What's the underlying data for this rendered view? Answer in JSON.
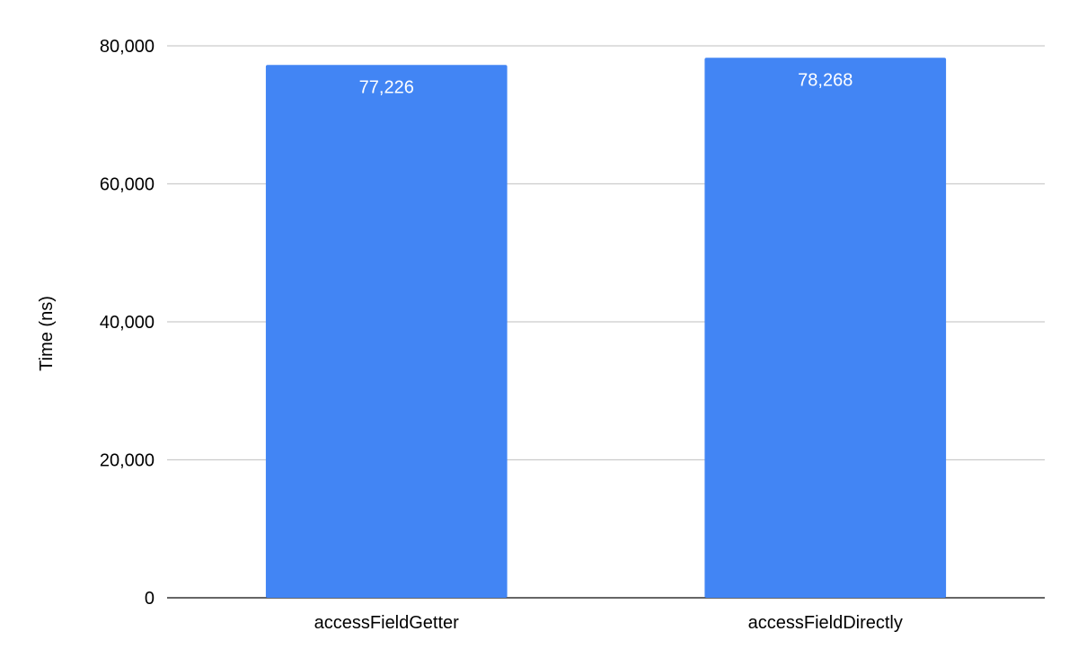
{
  "chart_data": {
    "type": "bar",
    "title": "",
    "xlabel": "",
    "ylabel": "Time (ns)",
    "categories": [
      "accessFieldGetter",
      "accessFieldDirectly"
    ],
    "values": [
      77226,
      78268
    ],
    "data_labels": [
      "77,226",
      "78,268"
    ],
    "ylim": [
      0,
      80000
    ],
    "yticks": [
      0,
      20000,
      40000,
      60000,
      80000
    ],
    "ytick_labels": [
      "0",
      "20,000",
      "40,000",
      "60,000",
      "80,000"
    ],
    "grid": true,
    "legend": "none",
    "colors": {
      "bar": "#4285f4",
      "grid": "#cccccc",
      "axis": "#333333",
      "text": "#000000",
      "data_label": "#ffffff"
    }
  }
}
